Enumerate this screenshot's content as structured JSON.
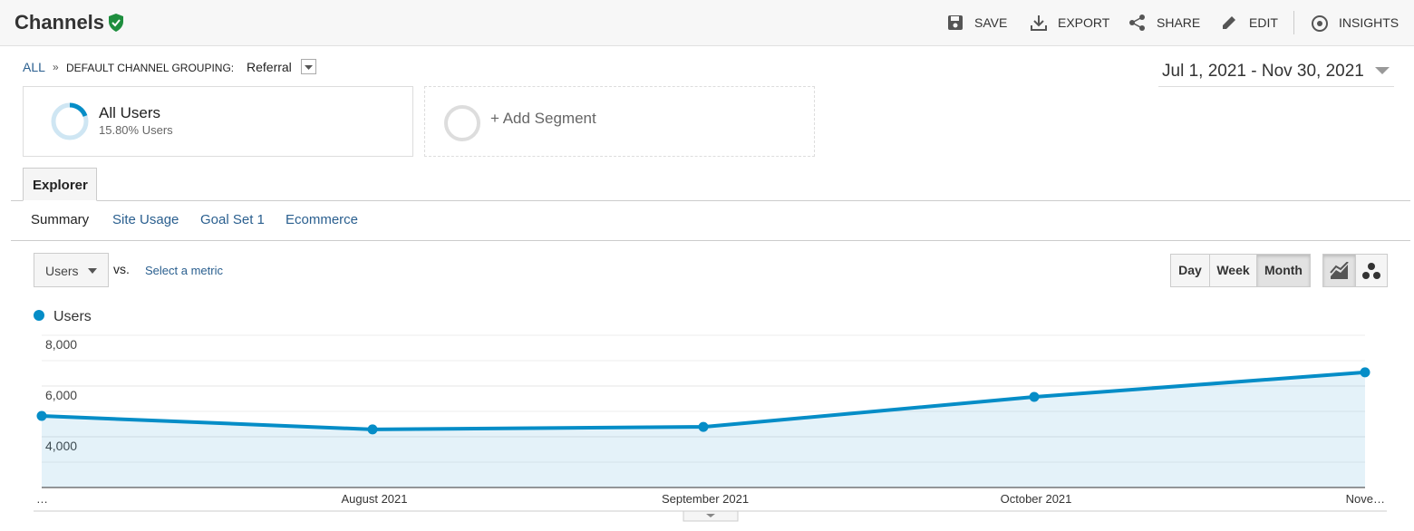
{
  "header": {
    "title": "Channels",
    "actions": [
      "SAVE",
      "EXPORT",
      "SHARE",
      "EDIT",
      "INSIGHTS"
    ]
  },
  "breadcrumb": {
    "root": "ALL",
    "separator": "»",
    "grouping": "DEFAULT CHANNEL GROUPING:",
    "value": "Referral"
  },
  "date_range": "Jul 1, 2021 - Nov 30, 2021",
  "segments": [
    {
      "name": "All Users",
      "detail": "15.80% Users"
    },
    {
      "name": "+ Add Segment"
    }
  ],
  "tab": "Explorer",
  "subtabs": [
    "Summary",
    "Site Usage",
    "Goal Set 1",
    "Ecommerce"
  ],
  "metric": {
    "selected": "Users",
    "vs": "vs.",
    "secondary": "Select a metric"
  },
  "granularity": [
    "Day",
    "Week",
    "Month"
  ],
  "chart_data": {
    "type": "line",
    "categories": [
      "…",
      "August 2021",
      "September 2021",
      "October 2021",
      "Nove…"
    ],
    "series": [
      {
        "name": "Users",
        "color": "#058dc7",
        "values": [
          4820,
          4290,
          4390,
          5570,
          6540
        ]
      }
    ],
    "ylim": [
      2000,
      8000
    ],
    "yticks": [
      {
        "value": 8000,
        "label": "8,000"
      },
      {
        "value": 6000,
        "label": "6,000"
      },
      {
        "value": 4000,
        "label": "4,000"
      }
    ],
    "grid": true,
    "area": true
  }
}
